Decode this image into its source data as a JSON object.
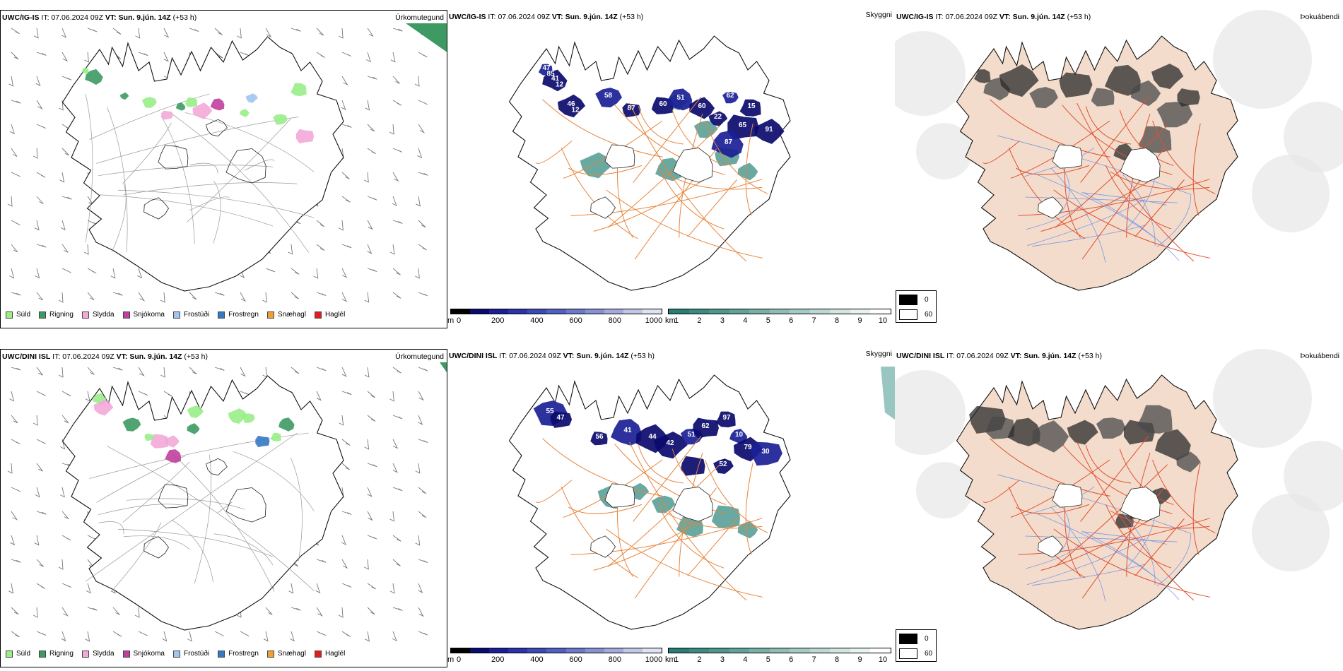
{
  "rows": [
    {
      "id": "igis",
      "model": "UWC/IG-IS",
      "it_label": "IT:",
      "it_value": "07.06.2024 09Z",
      "vt_label": "VT:",
      "vt_value": "Sun. 9.jún. 14Z",
      "lead": "(+53 h)"
    },
    {
      "id": "dini",
      "model": "UWC/DINI ISL",
      "it_label": "IT:",
      "it_value": "07.06.2024 09Z",
      "vt_label": "VT:",
      "vt_value": "Sun. 9.jún. 14Z",
      "lead": "(+53 h)"
    }
  ],
  "panel_titles": {
    "precip": "Úrkomutegund",
    "visibility": "Skyggni",
    "fog": "Þokuábendi"
  },
  "precip_legend": [
    {
      "label": "Súld",
      "color": "#99ee88"
    },
    {
      "label": "Rigning",
      "color": "#3c9a62"
    },
    {
      "label": "Slydda",
      "color": "#f2a9d8"
    },
    {
      "label": "Snjókoma",
      "color": "#c0409e"
    },
    {
      "label": "Frostúði",
      "color": "#9fc6ee"
    },
    {
      "label": "Frostregn",
      "color": "#3579c3"
    },
    {
      "label": "Snæhagl",
      "color": "#f0a030"
    },
    {
      "label": "Haglél",
      "color": "#e41a1c"
    }
  ],
  "cloudbase_bar": {
    "unit": "m",
    "ticks": [
      "0",
      "200",
      "400",
      "600",
      "800",
      "1000"
    ],
    "colors": [
      "#000000",
      "#0b0b6e",
      "#1a1f96",
      "#2a33a8",
      "#3d4ab4",
      "#5260c0",
      "#6c78c8",
      "#8891d2",
      "#a3abdc",
      "#c2c7e8",
      "#dfe2f3"
    ]
  },
  "visibility_bar": {
    "unit": "km",
    "ticks": [
      "1",
      "2",
      "3",
      "4",
      "5",
      "6",
      "7",
      "8",
      "9",
      "10"
    ],
    "colors": [
      "#2a7d74",
      "#3c8a80",
      "#4e978c",
      "#62a398",
      "#78b0a6",
      "#8ebdb4",
      "#a4cbc3",
      "#bbd9d2",
      "#d2e6e1",
      "#e8f3f0",
      "#ffffff"
    ]
  },
  "fog_legend": [
    {
      "label": "0",
      "color": "#000000"
    },
    {
      "label": "60",
      "color": "#ffffff"
    }
  ],
  "cloud_labels": {
    "igis": [
      "47",
      "41",
      "46",
      "58",
      "87",
      "60",
      "51",
      "60",
      "22",
      "62",
      "65",
      "15",
      "87",
      "91",
      "85",
      "12",
      "12"
    ],
    "dini": [
      "55",
      "47",
      "56",
      "41",
      "44",
      "42",
      "51",
      "62",
      "97",
      "10",
      "79",
      "52",
      "30"
    ]
  },
  "map_colors": {
    "land_fill": "#f3dccb",
    "roads_orange": "#e8843a",
    "roads_red": "#e05030",
    "rivers": "#7a96e6",
    "coast": "#111111"
  }
}
